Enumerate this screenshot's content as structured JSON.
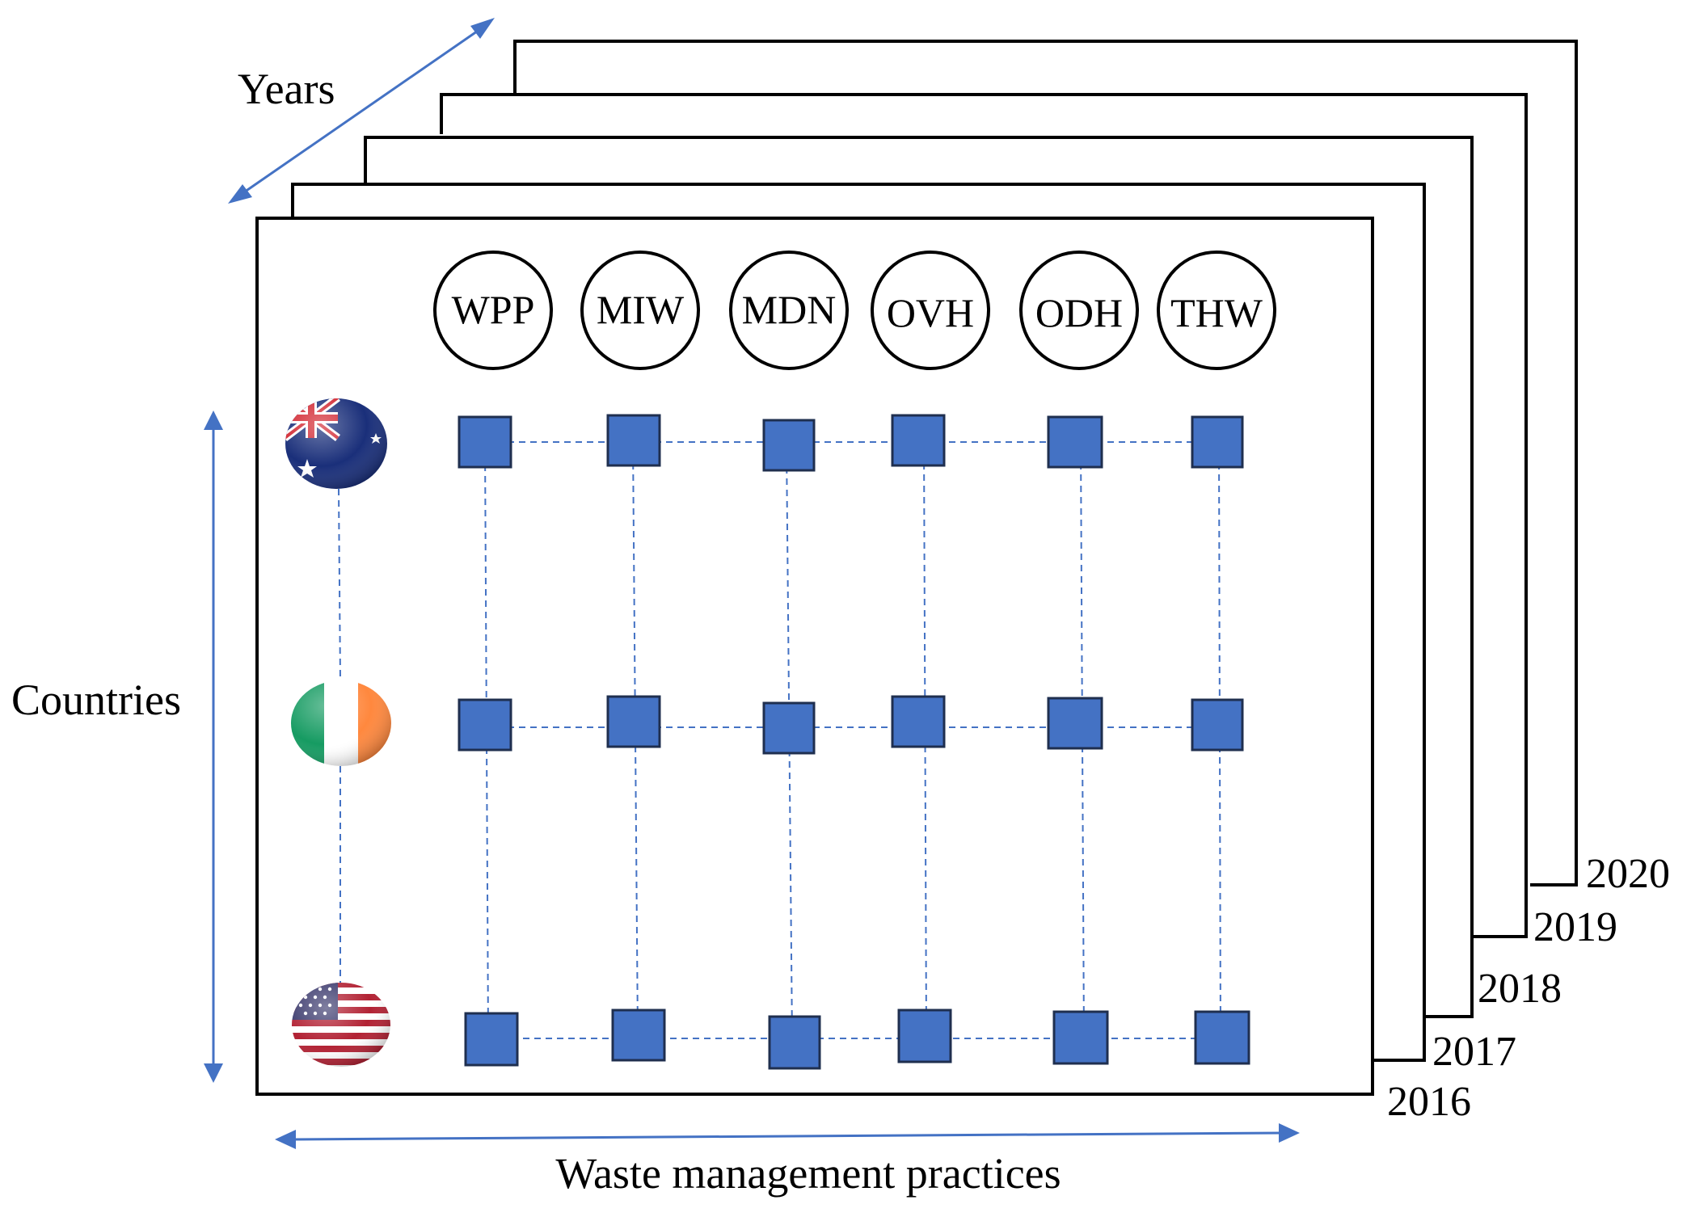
{
  "axes": {
    "years": "Years",
    "countries": "Countries",
    "practices": "Waste management practices"
  },
  "years": [
    "2016",
    "2017",
    "2018",
    "2019",
    "2020"
  ],
  "practices": [
    "WPP",
    "MIW",
    "MDN",
    "OVH",
    "ODH",
    "THW"
  ],
  "countries": [
    {
      "flag": "australia-flag-icon"
    },
    {
      "flag": "ireland-flag-icon"
    },
    {
      "flag": "usa-flag-icon"
    }
  ],
  "colors": {
    "node": "#4472c4",
    "node_border": "#1f2f4f",
    "arrow": "#4472c4",
    "dashed": "#4472c4",
    "frame": "#000000"
  }
}
